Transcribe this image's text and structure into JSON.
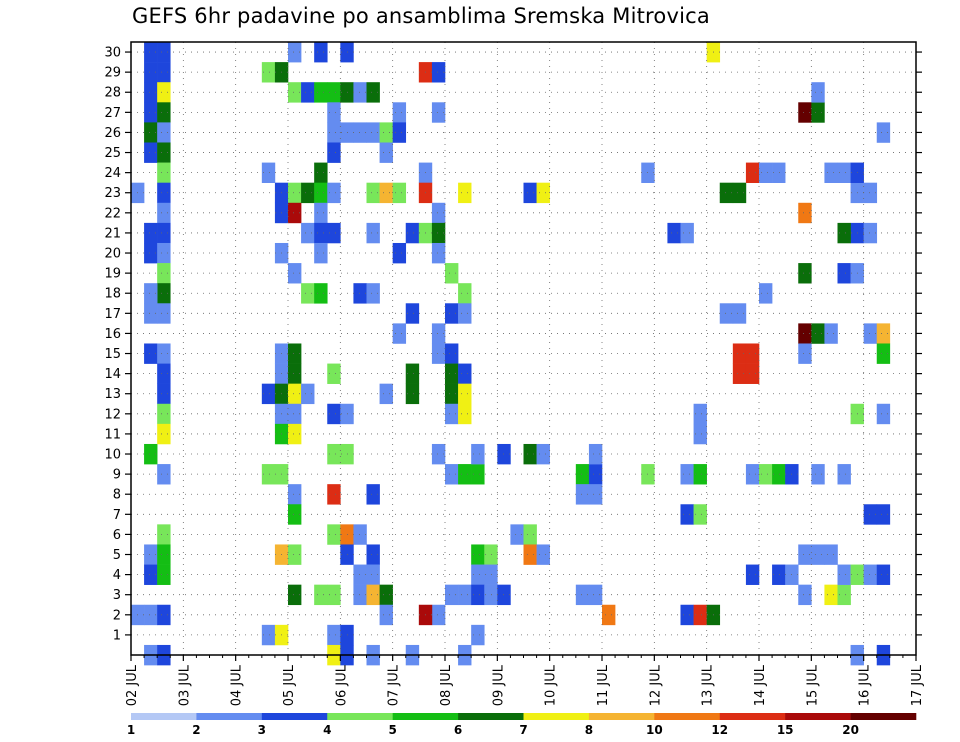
{
  "chart_data": {
    "type": "heatmap",
    "title": "GEFS 6hr padavine po ansamblima Sremska Mitrovica",
    "x_ticks": [
      "02 JUL",
      "03 JUL",
      "04 JUL",
      "05 JUL",
      "06 JUL",
      "07 JUL",
      "08 JUL",
      "09 JUL",
      "10 JUL",
      "11 JUL",
      "12 JUL",
      "13 JUL",
      "14 JUL",
      "15 JUL",
      "16 JUL",
      "17 JUL"
    ],
    "y_ticks": [
      "1",
      "2",
      "3",
      "4",
      "5",
      "6",
      "7",
      "8",
      "9",
      "10",
      "11",
      "12",
      "13",
      "14",
      "15",
      "16",
      "17",
      "18",
      "19",
      "20",
      "21",
      "22",
      "23",
      "24",
      "25",
      "26",
      "27",
      "28",
      "29",
      "30"
    ],
    "x_range": [
      "02 JUL",
      "17 JUL"
    ],
    "y_range": [
      0,
      30
    ],
    "grid": true,
    "colorbar": {
      "labels": [
        "1",
        "2",
        "3",
        "4",
        "5",
        "6",
        "7",
        "8",
        "10",
        "12",
        "15",
        "20"
      ],
      "colors": [
        "#b4c8f5",
        "#648cf0",
        "#1e46dc",
        "#78e65a",
        "#14be14",
        "#0a6e0a",
        "#f0f014",
        "#f5b432",
        "#f07814",
        "#dc2d14",
        "#aa0a0a",
        "#640000"
      ]
    },
    "cells": [
      [
        1,
        0,
        1
      ],
      [
        1,
        30,
        2
      ],
      [
        1,
        29,
        2
      ],
      [
        1,
        28,
        2
      ],
      [
        1,
        27,
        2
      ],
      [
        1,
        26,
        5
      ],
      [
        1,
        25,
        2
      ],
      [
        1,
        21,
        2
      ],
      [
        1,
        20,
        2
      ],
      [
        1,
        15,
        2
      ],
      [
        1,
        10,
        4
      ],
      [
        1,
        5,
        1
      ],
      [
        1,
        4,
        2
      ],
      [
        1,
        2,
        1
      ],
      [
        0,
        23,
        1
      ],
      [
        0,
        2,
        1
      ],
      [
        2,
        30,
        2
      ],
      [
        2,
        29,
        2
      ],
      [
        2,
        28,
        6
      ],
      [
        2,
        27,
        5
      ],
      [
        2,
        26,
        1
      ],
      [
        2,
        25,
        5
      ],
      [
        2,
        24,
        3
      ],
      [
        2,
        23,
        2
      ],
      [
        2,
        22,
        1
      ],
      [
        2,
        21,
        2
      ],
      [
        2,
        20,
        1
      ],
      [
        2,
        19,
        3
      ],
      [
        2,
        18,
        5
      ],
      [
        2,
        17,
        1
      ],
      [
        2,
        15,
        1
      ],
      [
        2,
        14,
        2
      ],
      [
        2,
        13,
        2
      ],
      [
        2,
        12,
        3
      ],
      [
        2,
        11,
        6
      ],
      [
        2,
        9,
        1
      ],
      [
        2,
        6,
        3
      ],
      [
        2,
        5,
        4
      ],
      [
        2,
        4,
        4
      ],
      [
        2,
        2,
        2
      ],
      [
        2,
        0,
        2
      ],
      [
        1,
        18,
        1
      ],
      [
        1,
        17,
        1
      ],
      [
        12,
        30,
        1
      ],
      [
        14,
        30,
        2
      ],
      [
        16,
        30,
        2
      ],
      [
        10,
        29,
        3
      ],
      [
        11,
        29,
        5
      ],
      [
        12,
        28,
        3
      ],
      [
        13,
        28,
        2
      ],
      [
        14,
        28,
        4
      ],
      [
        15,
        28,
        4
      ],
      [
        16,
        28,
        5
      ],
      [
        17,
        28,
        1
      ],
      [
        18,
        28,
        5
      ],
      [
        15,
        27,
        1
      ],
      [
        20,
        27,
        1
      ],
      [
        15,
        26,
        1
      ],
      [
        16,
        26,
        1
      ],
      [
        17,
        26,
        1
      ],
      [
        18,
        26,
        1
      ],
      [
        19,
        26,
        3
      ],
      [
        20,
        26,
        2
      ],
      [
        15,
        25,
        2
      ],
      [
        19,
        25,
        1
      ],
      [
        14,
        24,
        5
      ],
      [
        10,
        24,
        1
      ],
      [
        11,
        23,
        2
      ],
      [
        12,
        23,
        3
      ],
      [
        13,
        23,
        5
      ],
      [
        14,
        23,
        4
      ],
      [
        15,
        23,
        1
      ],
      [
        18,
        23,
        3
      ],
      [
        19,
        23,
        7
      ],
      [
        20,
        23,
        3
      ],
      [
        11,
        22,
        2
      ],
      [
        12,
        22,
        10
      ],
      [
        14,
        22,
        1
      ],
      [
        13,
        21,
        1
      ],
      [
        14,
        21,
        2
      ],
      [
        15,
        21,
        2
      ],
      [
        18,
        21,
        1
      ],
      [
        21,
        21,
        2
      ],
      [
        11,
        20,
        1
      ],
      [
        14,
        20,
        1
      ],
      [
        20,
        20,
        2
      ],
      [
        12,
        19,
        1
      ],
      [
        13,
        18,
        3
      ],
      [
        14,
        18,
        4
      ],
      [
        17,
        18,
        2
      ],
      [
        18,
        18,
        1
      ],
      [
        21,
        17,
        2
      ],
      [
        20,
        16,
        1
      ],
      [
        11,
        15,
        1
      ],
      [
        12,
        15,
        5
      ],
      [
        15,
        14,
        3
      ],
      [
        11,
        14,
        1
      ],
      [
        12,
        14,
        5
      ],
      [
        21,
        14,
        5
      ],
      [
        10,
        13,
        2
      ],
      [
        11,
        13,
        5
      ],
      [
        12,
        13,
        6
      ],
      [
        13,
        13,
        1
      ],
      [
        19,
        13,
        1
      ],
      [
        21,
        13,
        5
      ],
      [
        11,
        12,
        1
      ],
      [
        12,
        12,
        1
      ],
      [
        15,
        12,
        2
      ],
      [
        16,
        12,
        1
      ],
      [
        11,
        11,
        4
      ],
      [
        12,
        11,
        6
      ],
      [
        15,
        10,
        3
      ],
      [
        16,
        10,
        3
      ],
      [
        10,
        9,
        3
      ],
      [
        11,
        9,
        3
      ],
      [
        12,
        8,
        1
      ],
      [
        15,
        8,
        9
      ],
      [
        18,
        8,
        2
      ],
      [
        12,
        7,
        4
      ],
      [
        15,
        6,
        3
      ],
      [
        16,
        6,
        8
      ],
      [
        17,
        6,
        1
      ],
      [
        11,
        5,
        7
      ],
      [
        12,
        5,
        3
      ],
      [
        16,
        5,
        2
      ],
      [
        18,
        5,
        2
      ],
      [
        17,
        4,
        1
      ],
      [
        18,
        4,
        1
      ],
      [
        12,
        3,
        5
      ],
      [
        14,
        3,
        3
      ],
      [
        15,
        3,
        3
      ],
      [
        17,
        3,
        1
      ],
      [
        18,
        3,
        7
      ],
      [
        19,
        3,
        5
      ],
      [
        19,
        2,
        1
      ],
      [
        10,
        1,
        1
      ],
      [
        11,
        1,
        6
      ],
      [
        15,
        1,
        1
      ],
      [
        16,
        1,
        2
      ],
      [
        15,
        0,
        6
      ],
      [
        16,
        0,
        2
      ],
      [
        18,
        0,
        1
      ],
      [
        22,
        29,
        9
      ],
      [
        23,
        29,
        2
      ],
      [
        23,
        27,
        1
      ],
      [
        22,
        24,
        1
      ],
      [
        22,
        23,
        9
      ],
      [
        25,
        23,
        6
      ],
      [
        23,
        22,
        1
      ],
      [
        22,
        21,
        3
      ],
      [
        23,
        21,
        5
      ],
      [
        23,
        20,
        1
      ],
      [
        24,
        19,
        3
      ],
      [
        25,
        18,
        3
      ],
      [
        24,
        17,
        2
      ],
      [
        25,
        17,
        1
      ],
      [
        23,
        16,
        1
      ],
      [
        23,
        15,
        1
      ],
      [
        24,
        15,
        2
      ],
      [
        24,
        14,
        5
      ],
      [
        25,
        14,
        2
      ],
      [
        24,
        13,
        5
      ],
      [
        25,
        13,
        6
      ],
      [
        24,
        12,
        1
      ],
      [
        25,
        12,
        6
      ],
      [
        23,
        10,
        1
      ],
      [
        24,
        9,
        1
      ],
      [
        25,
        9,
        4
      ],
      [
        26,
        9,
        4
      ],
      [
        26,
        10,
        1
      ],
      [
        28,
        10,
        2
      ],
      [
        26,
        5,
        4
      ],
      [
        27,
        5,
        3
      ],
      [
        27,
        4,
        1
      ],
      [
        26,
        4,
        1
      ],
      [
        24,
        3,
        1
      ],
      [
        25,
        3,
        1
      ],
      [
        26,
        3,
        2
      ],
      [
        27,
        3,
        1
      ],
      [
        28,
        3,
        2
      ],
      [
        23,
        2,
        1
      ],
      [
        22,
        2,
        10
      ],
      [
        26,
        1,
        1
      ],
      [
        21,
        0,
        1
      ],
      [
        25,
        0,
        1
      ],
      [
        30,
        23,
        2
      ],
      [
        31,
        23,
        6
      ],
      [
        30,
        10,
        5
      ],
      [
        31,
        10,
        1
      ],
      [
        29,
        6,
        1
      ],
      [
        30,
        6,
        3
      ],
      [
        30,
        5,
        8
      ],
      [
        31,
        5,
        1
      ],
      [
        34,
        9,
        4
      ],
      [
        35,
        9,
        2
      ],
      [
        34,
        8,
        1
      ],
      [
        35,
        8,
        1
      ],
      [
        35,
        10,
        1
      ],
      [
        34,
        3,
        1
      ],
      [
        35,
        3,
        1
      ],
      [
        36,
        2,
        8
      ],
      [
        39,
        24,
        1
      ],
      [
        39,
        9,
        3
      ],
      [
        42,
        9,
        1
      ],
      [
        43,
        9,
        4
      ],
      [
        42,
        7,
        2
      ],
      [
        43,
        7,
        3
      ],
      [
        42,
        2,
        2
      ],
      [
        43,
        2,
        9
      ],
      [
        44,
        2,
        5
      ],
      [
        41,
        21,
        2
      ],
      [
        42,
        21,
        1
      ],
      [
        43,
        12,
        1
      ],
      [
        44,
        30,
        6
      ],
      [
        43,
        11,
        1
      ],
      [
        45,
        17,
        1
      ],
      [
        46,
        17,
        1
      ],
      [
        45,
        23,
        5
      ],
      [
        46,
        23,
        5
      ],
      [
        46,
        15,
        9
      ],
      [
        47,
        15,
        9
      ],
      [
        46,
        14,
        9
      ],
      [
        47,
        14,
        9
      ],
      [
        47,
        24,
        9
      ],
      [
        48,
        24,
        1
      ],
      [
        49,
        24,
        1
      ],
      [
        48,
        18,
        1
      ],
      [
        47,
        9,
        1
      ],
      [
        48,
        9,
        3
      ],
      [
        49,
        9,
        4
      ],
      [
        50,
        9,
        2
      ],
      [
        47,
        4,
        2
      ],
      [
        49,
        4,
        2
      ],
      [
        50,
        4,
        1
      ],
      [
        51,
        27,
        11
      ],
      [
        52,
        27,
        5
      ],
      [
        51,
        19,
        5
      ],
      [
        51,
        16,
        11
      ],
      [
        52,
        16,
        5
      ],
      [
        53,
        16,
        1
      ],
      [
        51,
        15,
        1
      ],
      [
        51,
        22,
        8
      ],
      [
        52,
        28,
        1
      ],
      [
        52,
        9,
        1
      ],
      [
        54,
        9,
        1
      ],
      [
        51,
        5,
        1
      ],
      [
        52,
        5,
        1
      ],
      [
        53,
        5,
        1
      ],
      [
        51,
        3,
        1
      ],
      [
        53,
        3,
        6
      ],
      [
        54,
        3,
        3
      ],
      [
        53,
        24,
        1
      ],
      [
        54,
        24,
        1
      ],
      [
        55,
        23,
        1
      ],
      [
        55,
        24,
        2
      ],
      [
        55,
        21,
        2
      ],
      [
        54,
        21,
        5
      ],
      [
        54,
        19,
        2
      ],
      [
        55,
        19,
        1
      ],
      [
        55,
        12,
        3
      ],
      [
        54,
        4,
        1
      ],
      [
        55,
        4,
        3
      ],
      [
        56,
        4,
        1
      ],
      [
        57,
        4,
        2
      ],
      [
        56,
        21,
        1
      ],
      [
        56,
        16,
        1
      ],
      [
        57,
        16,
        7
      ],
      [
        57,
        26,
        1
      ],
      [
        57,
        15,
        4
      ],
      [
        57,
        12,
        1
      ],
      [
        57,
        7,
        2
      ],
      [
        56,
        7,
        2
      ],
      [
        55,
        0,
        1
      ],
      [
        57,
        0,
        2
      ],
      [
        56,
        23,
        1
      ]
    ]
  }
}
